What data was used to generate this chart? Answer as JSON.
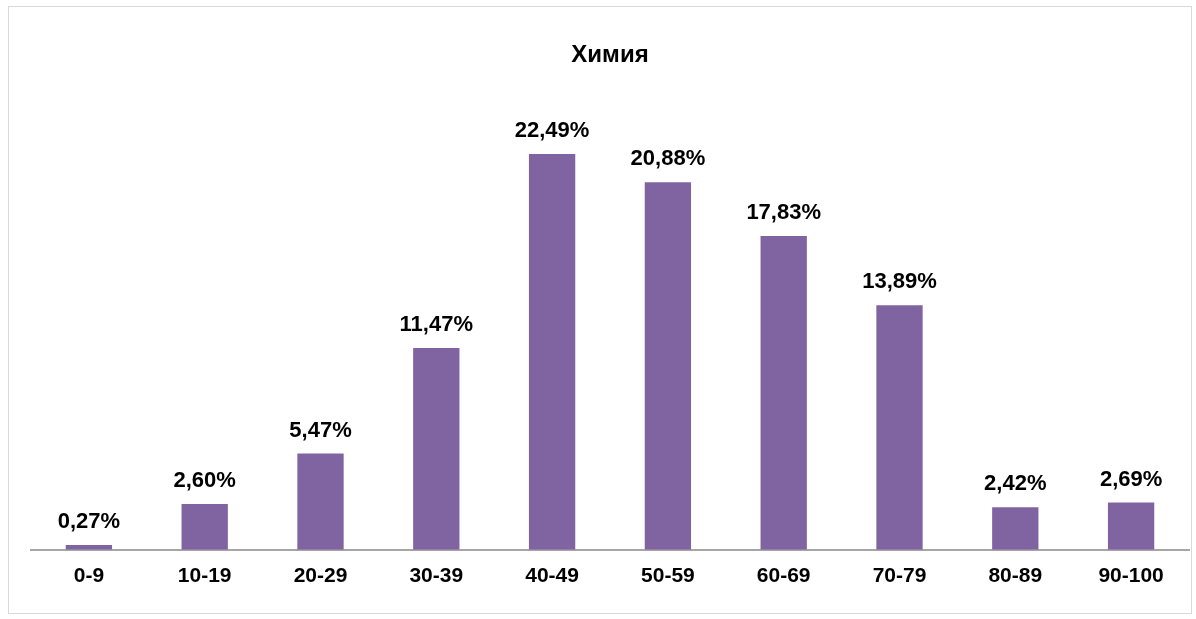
{
  "chart_data": {
    "type": "bar",
    "title": "Химия",
    "categories": [
      "0-9",
      "10-19",
      "20-29",
      "30-39",
      "40-49",
      "50-59",
      "60-69",
      "70-79",
      "80-89",
      "90-100"
    ],
    "values": [
      0.27,
      2.6,
      5.47,
      11.47,
      22.49,
      20.88,
      17.83,
      13.89,
      2.42,
      2.69
    ],
    "value_labels": [
      "0,27%",
      "2,60%",
      "5,47%",
      "11,47%",
      "22,49%",
      "20,88%",
      "17,83%",
      "13,89%",
      "2,42%",
      "2,69%"
    ],
    "color": "#8064a2",
    "grid": false,
    "legend": false
  }
}
